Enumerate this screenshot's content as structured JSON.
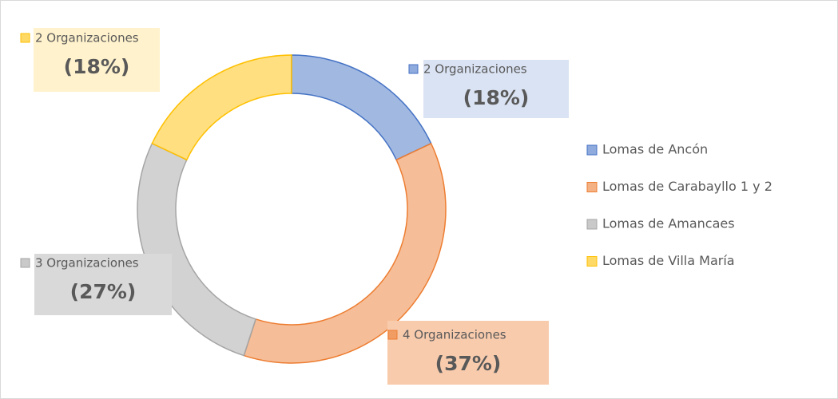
{
  "chart_data": {
    "type": "donut",
    "categories": [
      "Lomas de Ancón",
      "Lomas de Carabayllo 1 y 2",
      "Lomas de Amancaes",
      "Lomas de Villa María"
    ],
    "values": [
      18,
      37,
      27,
      18
    ],
    "value_labels": [
      "(18%)",
      "(37%)",
      "(27%)",
      "(18%)"
    ],
    "count_labels": [
      "2 Organizaciones",
      "4 Organizaciones",
      "3 Organizaciones",
      "2 Organizaciones"
    ],
    "colors": [
      "#4472c4",
      "#ed7d31",
      "#a5a5a5",
      "#ffc000"
    ],
    "label_fills": [
      "#dae3f3",
      "#f8cbad",
      "#d9d9d9",
      "#fff2cc"
    ],
    "legend": "right"
  }
}
